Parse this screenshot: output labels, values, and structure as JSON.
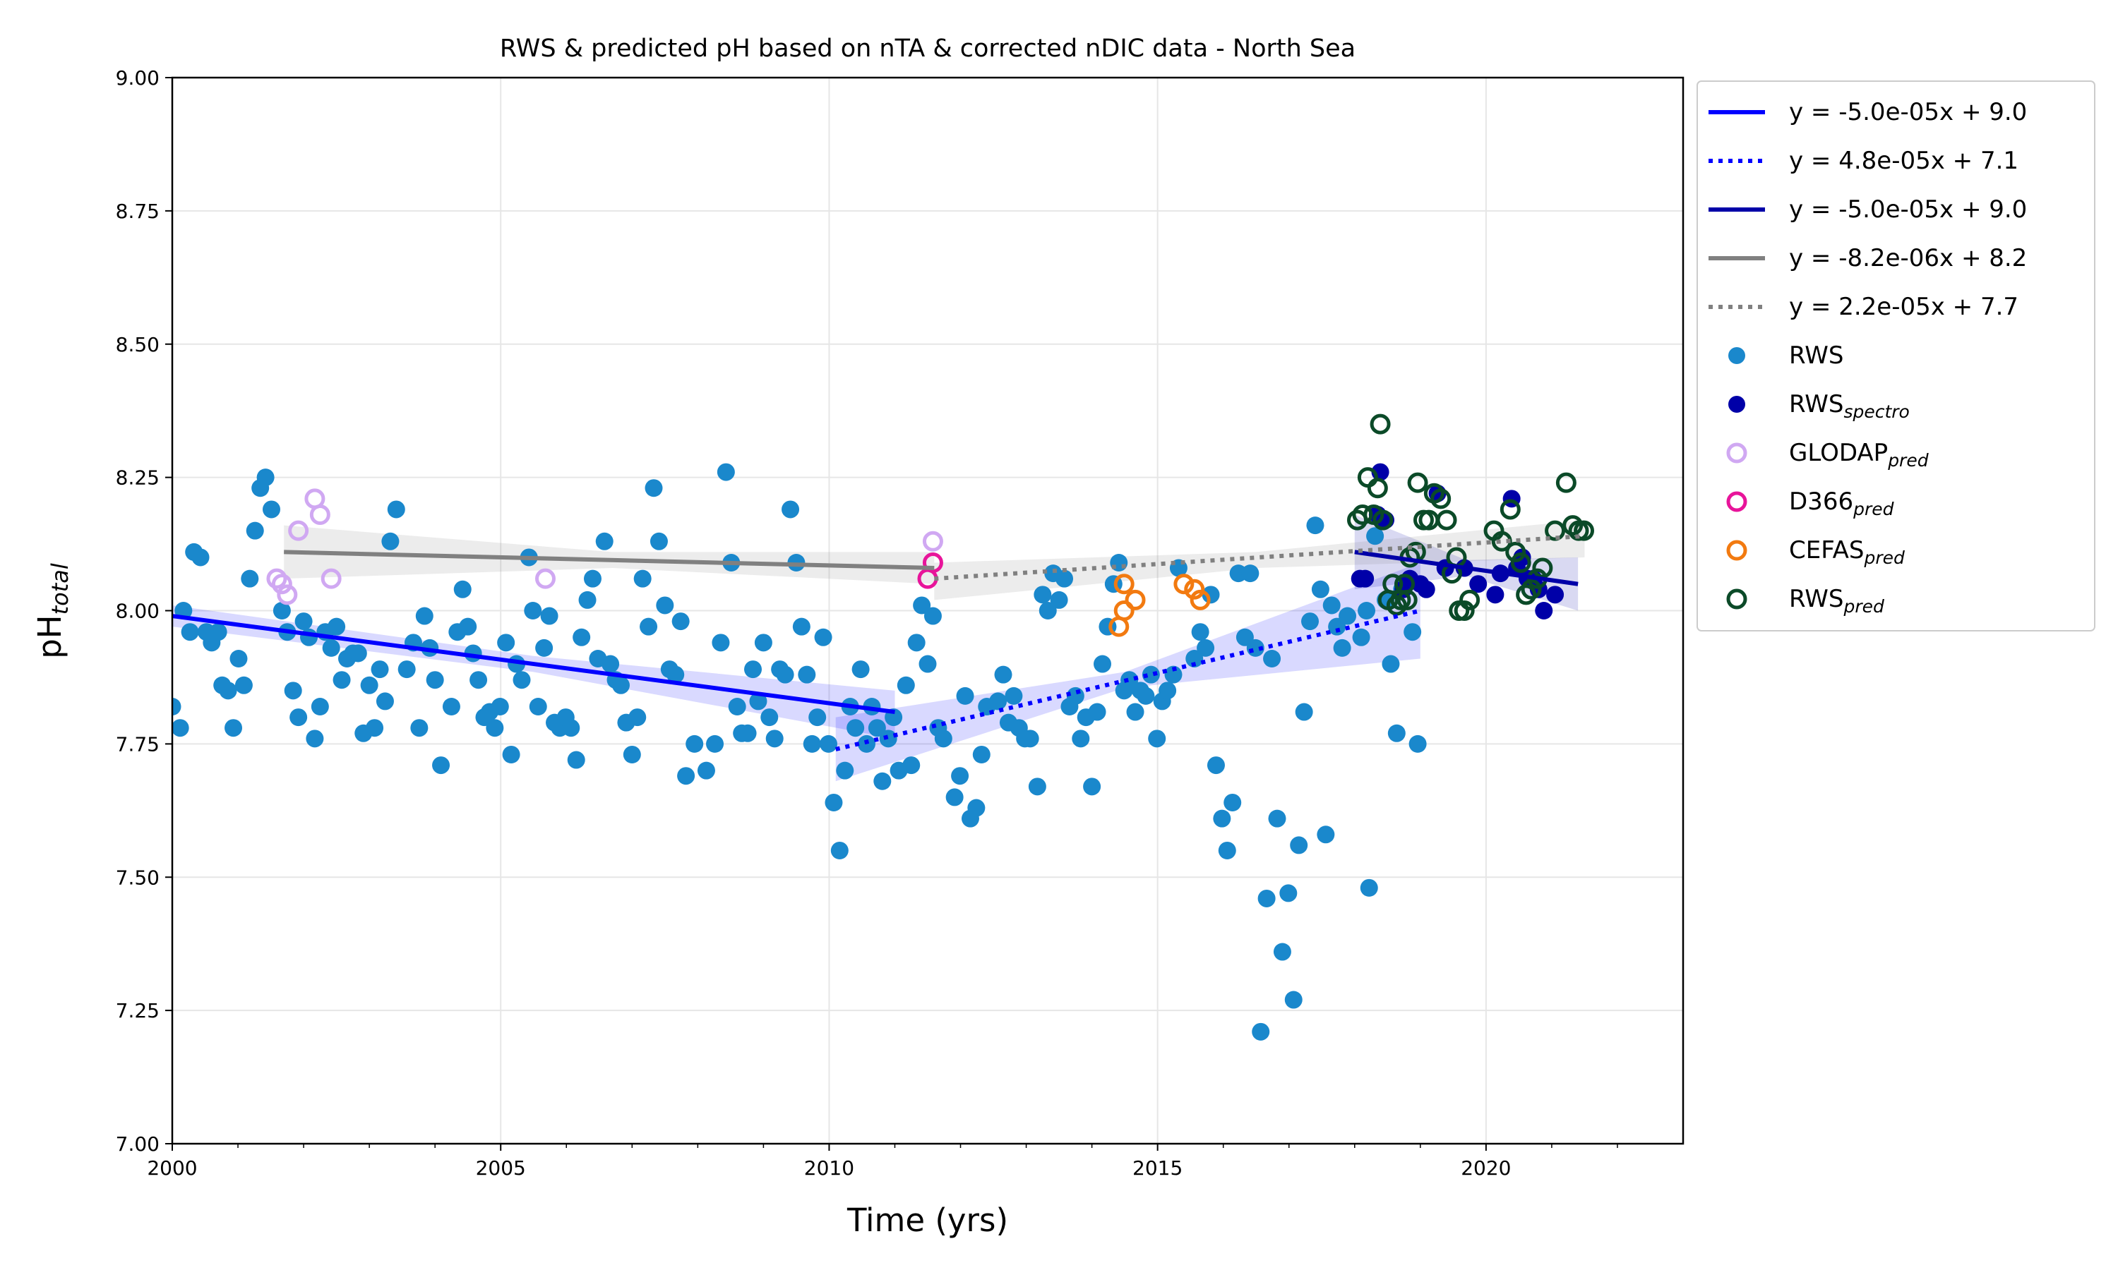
{
  "chart_data": {
    "type": "scatter",
    "title": "RWS & predicted pH based on nTA & corrected nDIC data - North Sea",
    "x_label": "Time (yrs)",
    "y_label": "pH",
    "y_label_sub": "total",
    "xlim": [
      2000,
      2023
    ],
    "ylim": [
      7.0,
      9.0
    ],
    "xticks": [
      2000,
      2005,
      2010,
      2015,
      2020
    ],
    "xminorticks": [
      2001,
      2002,
      2003,
      2004,
      2006,
      2007,
      2008,
      2009,
      2011,
      2012,
      2013,
      2014,
      2016,
      2017,
      2018,
      2019,
      2021,
      2022
    ],
    "yticks": [
      {
        "value": 7.0,
        "label": "7.00"
      },
      {
        "value": 7.25,
        "label": "7.25"
      },
      {
        "value": 7.5,
        "label": "7.50"
      },
      {
        "value": 7.75,
        "label": "7.75"
      },
      {
        "value": 8.0,
        "label": "8.00"
      },
      {
        "value": 8.25,
        "label": "8.25"
      },
      {
        "value": 8.5,
        "label": "8.50"
      },
      {
        "value": 8.75,
        "label": "8.75"
      },
      {
        "value": 9.0,
        "label": "9.00"
      }
    ],
    "grid": true,
    "legend_position": "outside-right",
    "series": [
      {
        "kind": "line",
        "style": "solid",
        "name": "y = -5.0e-05x + 9.0",
        "color": "#0000ff",
        "x": [
          2000,
          2011
        ],
        "values": [
          7.99,
          7.81
        ],
        "band": {
          "x": [
            2000,
            2005.5,
            2011
          ],
          "lower": [
            7.97,
            7.885,
            7.76
          ],
          "upper": [
            8.01,
            7.915,
            7.85
          ]
        }
      },
      {
        "kind": "line",
        "style": "dotted",
        "name": "y = 4.8e-05x + 7.1",
        "color": "#0000ff",
        "x": [
          2010.1,
          2019
        ],
        "values": [
          7.74,
          8.0
        ],
        "band": {
          "x": [
            2010.1,
            2014.5,
            2019
          ],
          "lower": [
            7.68,
            7.855,
            7.91
          ],
          "upper": [
            7.8,
            7.885,
            8.09
          ]
        }
      },
      {
        "kind": "line",
        "style": "solid",
        "name": "y = -5.0e-05x + 9.0",
        "color": "#0000a8",
        "x": [
          2018,
          2021.4
        ],
        "values": [
          8.11,
          8.05
        ],
        "band": {
          "x": [
            2018,
            2019.7,
            2021.4
          ],
          "lower": [
            8.04,
            8.065,
            8.0
          ],
          "upper": [
            8.18,
            8.095,
            8.1
          ]
        }
      },
      {
        "kind": "line",
        "style": "solid",
        "name": "y = -8.2e-06x + 8.2",
        "color": "#808080",
        "x": [
          2001.7,
          2011.6
        ],
        "values": [
          8.11,
          8.08
        ],
        "band": {
          "x": [
            2001.7,
            2006.7,
            2011.6
          ],
          "lower": [
            8.06,
            8.08,
            8.05
          ],
          "upper": [
            8.16,
            8.11,
            8.11
          ]
        }
      },
      {
        "kind": "line",
        "style": "dotted",
        "name": "y = 2.2e-05x + 7.7",
        "color": "#808080",
        "x": [
          2011.6,
          2021.5
        ],
        "values": [
          8.06,
          8.14
        ],
        "band": {
          "x": [
            2011.6,
            2016.5,
            2021.5
          ],
          "lower": [
            8.02,
            8.08,
            8.1
          ],
          "upper": [
            8.09,
            8.11,
            8.17
          ]
        }
      },
      {
        "kind": "scatter",
        "marker": "filled",
        "name": "RWS",
        "color": "#1a88cc",
        "x": [
          2000.0,
          2000.12,
          2000.17,
          2000.27,
          2000.33,
          2000.43,
          2000.52,
          2000.6,
          2000.7,
          2000.76,
          2000.85,
          2000.93,
          2001.01,
          2001.09,
          2001.18,
          2001.26,
          2001.34,
          2001.42,
          2001.51,
          2001.67,
          2001.75,
          2001.84,
          2001.92,
          2002.0,
          2002.08,
          2002.17,
          2002.25,
          2002.33,
          2002.42,
          2002.5,
          2002.58,
          2002.66,
          2002.75,
          2002.83,
          2002.91,
          2003.0,
          2003.08,
          2003.16,
          2003.24,
          2003.32,
          2003.41,
          2003.57,
          2003.67,
          2003.76,
          2003.84,
          2003.92,
          2004.0,
          2004.09,
          2004.25,
          2004.34,
          2004.42,
          2004.5,
          2004.58,
          2004.66,
          2004.75,
          2004.83,
          2004.91,
          2004.99,
          2005.08,
          2005.16,
          2005.24,
          2005.32,
          2005.43,
          2005.49,
          2005.57,
          2005.66,
          2005.74,
          2005.82,
          2005.9,
          2005.99,
          2006.07,
          2006.15,
          2006.23,
          2006.32,
          2006.4,
          2006.48,
          2006.58,
          2006.67,
          2006.75,
          2006.83,
          2006.91,
          2007.0,
          2007.08,
          2007.16,
          2007.25,
          2007.33,
          2007.41,
          2007.5,
          2007.57,
          2007.66,
          2007.74,
          2007.82,
          2007.95,
          2008.13,
          2008.26,
          2008.35,
          2008.43,
          2008.51,
          2008.6,
          2008.67,
          2008.76,
          2008.84,
          2008.92,
          2009.0,
          2009.09,
          2009.17,
          2009.25,
          2009.33,
          2009.41,
          2009.5,
          2009.58,
          2009.66,
          2009.74,
          2009.82,
          2009.91,
          2009.99,
          2010.07,
          2010.16,
          2010.24,
          2010.32,
          2010.4,
          2010.48,
          2010.57,
          2010.65,
          2010.73,
          2010.81,
          2010.9,
          2010.98,
          2011.06,
          2011.17,
          2011.25,
          2011.33,
          2011.41,
          2011.5,
          2011.58,
          2011.66,
          2011.74,
          2011.91,
          2011.99,
          2012.07,
          2012.15,
          2012.24,
          2012.32,
          2012.4,
          2012.57,
          2012.65,
          2012.73,
          2012.81,
          2012.89,
          2012.98,
          2013.06,
          2013.17,
          2013.25,
          2013.33,
          2013.41,
          2013.5,
          2013.58,
          2013.66,
          2013.75,
          2013.83,
          2013.91,
          2014.0,
          2014.08,
          2014.16,
          2014.24,
          2014.33,
          2014.41,
          2014.49,
          2014.57,
          2014.66,
          2014.74,
          2014.82,
          2014.9,
          2014.99,
          2015.07,
          2015.15,
          2015.24,
          2015.32,
          2015.56,
          2015.65,
          2015.73,
          2015.81,
          2015.89,
          2015.98,
          2016.06,
          2016.14,
          2016.23,
          2016.33,
          2016.41,
          2016.49,
          2016.57,
          2016.66,
          2016.74,
          2016.82,
          2016.9,
          2016.99,
          2017.07,
          2017.15,
          2017.23,
          2017.32,
          2017.4,
          2017.48,
          2017.56,
          2017.65,
          2017.73,
          2017.81,
          2017.89,
          2018.1,
          2018.18,
          2018.22,
          2018.31,
          2018.47,
          2018.55,
          2018.64,
          2018.72,
          2018.88,
          2018.96
        ],
        "values": [
          7.82,
          7.78,
          8.0,
          7.96,
          8.11,
          8.1,
          7.96,
          7.94,
          7.96,
          7.86,
          7.85,
          7.78,
          7.91,
          7.86,
          8.06,
          8.15,
          8.23,
          8.25,
          8.19,
          8.0,
          7.96,
          7.85,
          7.8,
          7.98,
          7.95,
          7.76,
          7.82,
          7.96,
          7.93,
          7.97,
          7.87,
          7.91,
          7.92,
          7.92,
          7.77,
          7.86,
          7.78,
          7.89,
          7.83,
          8.13,
          8.19,
          7.89,
          7.94,
          7.78,
          7.99,
          7.93,
          7.87,
          7.71,
          7.82,
          7.96,
          8.04,
          7.97,
          7.92,
          7.87,
          7.8,
          7.81,
          7.78,
          7.82,
          7.94,
          7.73,
          7.9,
          7.87,
          8.1,
          8.0,
          7.82,
          7.93,
          7.99,
          7.79,
          7.78,
          7.8,
          7.78,
          7.72,
          7.95,
          8.02,
          8.06,
          7.91,
          8.13,
          7.9,
          7.87,
          7.86,
          7.79,
          7.73,
          7.8,
          8.06,
          7.97,
          8.23,
          8.13,
          8.01,
          7.89,
          7.88,
          7.98,
          7.69,
          7.75,
          7.7,
          7.75,
          7.94,
          8.26,
          8.09,
          7.82,
          7.77,
          7.77,
          7.89,
          7.83,
          7.94,
          7.8,
          7.76,
          7.89,
          7.88,
          8.19,
          8.09,
          7.97,
          7.88,
          7.75,
          7.8,
          7.95,
          7.75,
          7.64,
          7.55,
          7.7,
          7.82,
          7.78,
          7.89,
          7.75,
          7.82,
          7.78,
          7.68,
          7.76,
          7.8,
          7.7,
          7.86,
          7.71,
          7.94,
          8.01,
          7.9,
          7.99,
          7.78,
          7.76,
          7.65,
          7.69,
          7.84,
          7.61,
          7.63,
          7.73,
          7.82,
          7.83,
          7.88,
          7.79,
          7.84,
          7.78,
          7.76,
          7.76,
          7.67,
          8.03,
          8.0,
          8.07,
          8.02,
          8.06,
          7.82,
          7.84,
          7.76,
          7.8,
          7.67,
          7.81,
          7.9,
          7.97,
          8.05,
          8.09,
          7.85,
          7.87,
          7.81,
          7.85,
          7.84,
          7.88,
          7.76,
          7.83,
          7.85,
          7.88,
          8.08,
          7.91,
          7.96,
          7.93,
          8.03,
          7.71,
          7.61,
          7.55,
          7.64,
          8.07,
          7.95,
          8.07,
          7.93,
          7.21,
          7.46,
          7.91,
          7.61,
          7.36,
          7.47,
          7.27,
          7.56,
          7.81,
          7.98,
          8.16,
          8.04,
          7.58,
          8.01,
          7.97,
          7.93,
          7.99,
          7.95,
          8.0,
          7.48,
          8.14,
          8.02,
          7.9,
          7.77,
          8.04,
          7.96,
          7.75
        ]
      },
      {
        "kind": "scatter",
        "marker": "filled",
        "name": "RWS",
        "name_sub": "spectro",
        "color": "#0000a8",
        "x": [
          2018.08,
          2018.16,
          2018.35,
          2018.39,
          2018.47,
          2018.74,
          2018.84,
          2019.0,
          2019.09,
          2019.26,
          2019.38,
          2019.67,
          2019.88,
          2020.14,
          2020.22,
          2020.39,
          2020.47,
          2020.55,
          2020.63,
          2020.72,
          2020.8,
          2020.88,
          2021.05
        ],
        "values": [
          8.06,
          8.06,
          8.18,
          8.26,
          8.17,
          8.04,
          8.06,
          8.05,
          8.04,
          8.22,
          8.08,
          8.08,
          8.05,
          8.03,
          8.07,
          8.21,
          8.08,
          8.1,
          8.06,
          8.06,
          8.04,
          8.0,
          8.03
        ]
      },
      {
        "kind": "scatter",
        "marker": "hollow",
        "name": "GLODAP",
        "name_sub": "pred",
        "color": "#d0a8f2",
        "x": [
          2001.92,
          2002.17,
          2002.25,
          2001.59,
          2001.67,
          2001.75,
          2002.42,
          2005.68,
          2011.58
        ],
        "values": [
          8.15,
          8.21,
          8.18,
          8.06,
          8.05,
          8.03,
          8.06,
          8.06,
          8.13
        ]
      },
      {
        "kind": "scatter",
        "marker": "hollow",
        "name": "D366",
        "name_sub": "pred",
        "color": "#e8149a",
        "x": [
          2011.5,
          2011.58
        ],
        "values": [
          8.06,
          8.09
        ]
      },
      {
        "kind": "scatter",
        "marker": "hollow",
        "name": "CEFAS",
        "name_sub": "pred",
        "color": "#f27a10",
        "x": [
          2014.41,
          2014.49,
          2014.49,
          2014.66,
          2015.4,
          2015.56,
          2015.65
        ],
        "values": [
          7.97,
          8.0,
          8.05,
          8.02,
          8.05,
          8.04,
          8.02
        ]
      },
      {
        "kind": "scatter",
        "marker": "hollow",
        "name": "RWS",
        "name_sub": "pred",
        "color": "#0b4a28",
        "x": [
          2018.39,
          2018.04,
          2018.12,
          2018.2,
          2018.29,
          2018.35,
          2018.43,
          2018.51,
          2018.58,
          2018.64,
          2018.7,
          2018.76,
          2018.8,
          2018.84,
          2018.93,
          2018.96,
          2019.05,
          2019.13,
          2019.21,
          2019.31,
          2019.4,
          2019.48,
          2019.55,
          2019.59,
          2019.67,
          2019.75,
          2020.12,
          2020.24,
          2020.37,
          2020.45,
          2020.53,
          2020.61,
          2020.69,
          2020.78,
          2020.86,
          2021.05,
          2021.22,
          2021.32,
          2021.41,
          2021.49
        ],
        "values": [
          8.35,
          8.17,
          8.18,
          8.25,
          8.18,
          8.23,
          8.17,
          8.02,
          8.05,
          8.01,
          8.02,
          8.05,
          8.02,
          8.1,
          8.11,
          8.24,
          8.17,
          8.17,
          8.22,
          8.21,
          8.17,
          8.07,
          8.1,
          8.0,
          8.0,
          8.02,
          8.15,
          8.13,
          8.19,
          8.11,
          8.09,
          8.03,
          8.04,
          8.06,
          8.08,
          8.15,
          8.24,
          8.16,
          8.15,
          8.15
        ]
      }
    ]
  }
}
